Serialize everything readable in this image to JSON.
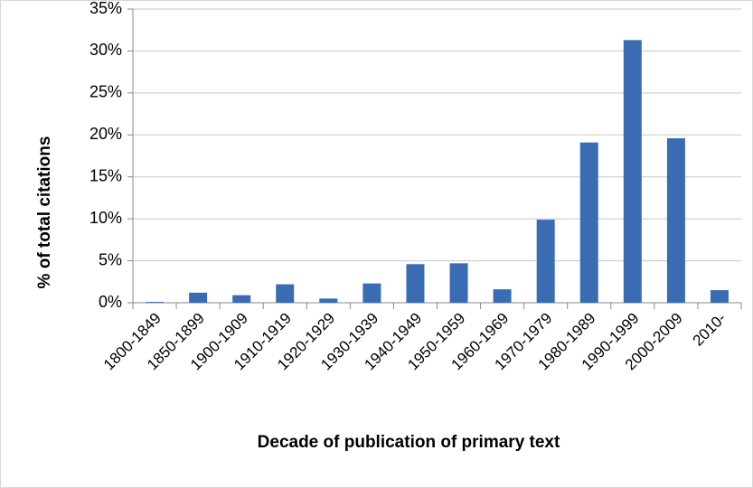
{
  "chart_data": {
    "type": "bar",
    "x_label": "Decade of publication of primary text",
    "y_label": "% of total citations",
    "categories": [
      "1800-1849",
      "1850-1899",
      "1900-1909",
      "1910-1919",
      "1920-1929",
      "1930-1939",
      "1940-1949",
      "1950-1959",
      "1960-1969",
      "1970-1979",
      "1980-1989",
      "1990-1999",
      "2000-2009",
      "2010-"
    ],
    "values": [
      0.1,
      1.2,
      0.9,
      2.2,
      0.5,
      2.3,
      4.6,
      4.7,
      1.6,
      9.9,
      19.1,
      31.3,
      19.6,
      1.5
    ],
    "color": "#3a6cb4",
    "ylim": [
      0,
      35
    ],
    "yticks": [
      {
        "value": 0,
        "label": "0%"
      },
      {
        "value": 5,
        "label": "5%"
      },
      {
        "value": 10,
        "label": "10%"
      },
      {
        "value": 15,
        "label": "15%"
      },
      {
        "value": 20,
        "label": "20%"
      },
      {
        "value": 25,
        "label": "25%"
      },
      {
        "value": 30,
        "label": "30%"
      },
      {
        "value": 35,
        "label": "35%"
      }
    ],
    "grid": true
  }
}
